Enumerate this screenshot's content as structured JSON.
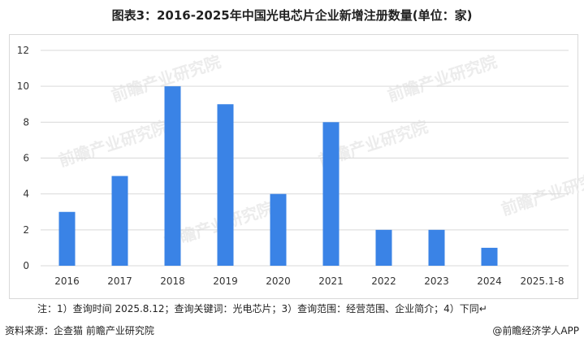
{
  "header": {
    "title": "图表3：2016-2025年中国光电芯片企业新增注册数量(单位：家)"
  },
  "notes": {
    "text": "注：1）查询时间 2025.8.12；查询关键词：光电芯片；3）查询范围：经营范围、企业简介；4）下同↵"
  },
  "footer": {
    "source": "资料来源：企查猫 前瞻产业研究院",
    "brand": "@前瞻经济学人APP"
  },
  "watermark": {
    "text": "前瞻产业研究院"
  },
  "colors": {
    "bar": "#3a83e6",
    "grid": "#d9d9d9",
    "axis_text": "#333333"
  },
  "chart_data": {
    "type": "bar",
    "categories": [
      "2016",
      "2017",
      "2018",
      "2019",
      "2020",
      "2021",
      "2022",
      "2023",
      "2024",
      "2025.1-8"
    ],
    "values": [
      3,
      5,
      10,
      9,
      4,
      8,
      2,
      2,
      1,
      0
    ],
    "title": "图表3：2016-2025年中国光电芯片企业新增注册数量(单位：家)",
    "ylim": [
      0,
      12
    ],
    "yticks": [
      0,
      2,
      4,
      6,
      8,
      10,
      12
    ],
    "grid": true,
    "legend": "none"
  }
}
